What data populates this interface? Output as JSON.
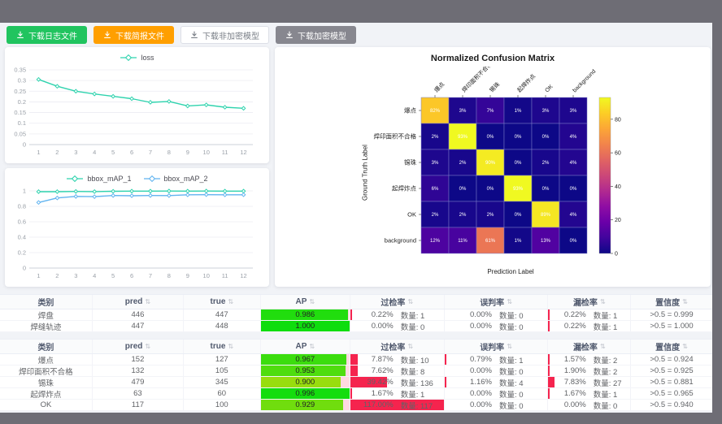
{
  "icons": {
    "download": "arrow-down-to-tray",
    "sort": "⇅"
  },
  "colors": {
    "frame_gray": "#6e6d75",
    "page_bg": "#f1f3f7",
    "green_button": "#21c45f",
    "orange_button": "#ff9f00",
    "gray_button": "#87878f",
    "teal_series": "#2fd3ae",
    "blue_series": "#62b4f0",
    "rate_bar_red": "#f5244e",
    "ap_track_pink": "#ffd9e0"
  },
  "toolbar": {
    "buttons": [
      {
        "label": "下载日志文件",
        "variant": "green"
      },
      {
        "label": "下载简报文件",
        "variant": "orange"
      },
      {
        "label": "下载非加密模型",
        "variant": "white"
      },
      {
        "label": "下载加密模型",
        "variant": "gray"
      }
    ]
  },
  "chart_data": [
    {
      "id": "loss",
      "type": "line",
      "x": [
        1,
        2,
        3,
        4,
        5,
        6,
        7,
        8,
        9,
        10,
        11,
        12
      ],
      "series": [
        {
          "name": "loss",
          "color": "#2fd3ae",
          "values": [
            0.305,
            0.273,
            0.25,
            0.237,
            0.226,
            0.215,
            0.198,
            0.202,
            0.181,
            0.186,
            0.175,
            0.17
          ]
        }
      ],
      "ylim": [
        0,
        0.35
      ],
      "yticks": [
        0,
        0.05,
        0.1,
        0.15,
        0.2,
        0.25,
        0.3,
        0.35
      ],
      "legend_position": "top",
      "grid": true
    },
    {
      "id": "bbox_map",
      "type": "line",
      "x": [
        1,
        2,
        3,
        4,
        5,
        6,
        7,
        8,
        9,
        10,
        11,
        12
      ],
      "series": [
        {
          "name": "bbox_mAP_1",
          "color": "#2fd3ae",
          "values": [
            0.99,
            0.99,
            0.993,
            0.991,
            0.995,
            0.997,
            0.997,
            0.998,
            0.997,
            0.998,
            0.997,
            0.997
          ]
        },
        {
          "name": "bbox_mAP_2",
          "color": "#62b4f0",
          "values": [
            0.85,
            0.908,
            0.928,
            0.925,
            0.94,
            0.937,
            0.94,
            0.939,
            0.949,
            0.951,
            0.949,
            0.95
          ]
        }
      ],
      "ylim": [
        0,
        1
      ],
      "yticks": [
        0,
        0.2,
        0.4,
        0.6,
        0.8,
        1
      ],
      "legend_position": "top",
      "grid": true
    },
    {
      "id": "confusion_matrix",
      "type": "heatmap",
      "title": "Normalized Confusion Matrix",
      "xlabel": "Prediction Label",
      "ylabel": "Ground Truth Label",
      "categories": [
        "爆点",
        "焊印面积不合格",
        "锡珠",
        "起焊炸点",
        "OK",
        "background"
      ],
      "values_pct": [
        [
          82,
          3,
          7,
          1,
          3,
          3
        ],
        [
          2,
          93,
          0,
          0,
          0,
          4
        ],
        [
          3,
          2,
          90,
          0,
          2,
          4
        ],
        [
          6,
          0,
          0,
          93,
          0,
          0
        ],
        [
          2,
          2,
          2,
          0,
          89,
          4
        ],
        [
          12,
          11,
          61,
          1,
          13,
          0
        ]
      ],
      "colormap": "plasma",
      "cmax": 93,
      "colorbar_ticks": [
        0,
        20,
        40,
        60,
        80
      ]
    }
  ],
  "tables": {
    "count_label": "数量:",
    "headers": [
      {
        "label": "类别",
        "sortable": false
      },
      {
        "label": "pred",
        "sortable": true
      },
      {
        "label": "true",
        "sortable": true
      },
      {
        "label": "AP",
        "sortable": true
      },
      {
        "label": "过检率",
        "sortable": true
      },
      {
        "label": "误判率",
        "sortable": true
      },
      {
        "label": "漏检率",
        "sortable": true
      },
      {
        "label": "置信度",
        "sortable": true
      }
    ],
    "groups": [
      {
        "rows": [
          {
            "name": "焊盘",
            "pred": 446,
            "true": 447,
            "ap": 0.986,
            "overkill": {
              "pct": 0.22,
              "count": 1
            },
            "misjudge": {
              "pct": 0.0,
              "count": 0
            },
            "miss": {
              "pct": 0.22,
              "count": 1
            },
            "confidence": ">0.5 = 0.999"
          },
          {
            "name": "焊缝轨迹",
            "pred": 447,
            "true": 448,
            "ap": 1.0,
            "overkill": {
              "pct": 0.0,
              "count": 0
            },
            "misjudge": {
              "pct": 0.0,
              "count": 0
            },
            "miss": {
              "pct": 0.22,
              "count": 1
            },
            "confidence": ">0.5 = 1.000"
          }
        ]
      },
      {
        "rows": [
          {
            "name": "爆点",
            "pred": 152,
            "true": 127,
            "ap": 0.967,
            "overkill": {
              "pct": 7.87,
              "count": 10
            },
            "misjudge": {
              "pct": 0.79,
              "count": 1
            },
            "miss": {
              "pct": 1.57,
              "count": 2
            },
            "confidence": ">0.5 = 0.924"
          },
          {
            "name": "焊印面积不合格",
            "pred": 132,
            "true": 105,
            "ap": 0.953,
            "overkill": {
              "pct": 7.62,
              "count": 8
            },
            "misjudge": {
              "pct": 0.0,
              "count": 0
            },
            "miss": {
              "pct": 1.9,
              "count": 2
            },
            "confidence": ">0.5 = 0.925"
          },
          {
            "name": "锡珠",
            "pred": 479,
            "true": 345,
            "ap": 0.9,
            "overkill": {
              "pct": 39.42,
              "count": 136
            },
            "misjudge": {
              "pct": 1.16,
              "count": 4
            },
            "miss": {
              "pct": 7.83,
              "count": 27
            },
            "confidence": ">0.5 = 0.881"
          },
          {
            "name": "起焊炸点",
            "pred": 63,
            "true": 60,
            "ap": 0.996,
            "overkill": {
              "pct": 1.67,
              "count": 1
            },
            "misjudge": {
              "pct": 0.0,
              "count": 0
            },
            "miss": {
              "pct": 1.67,
              "count": 1
            },
            "confidence": ">0.5 = 0.965"
          },
          {
            "name": "OK",
            "pred": 117,
            "true": 100,
            "ap": 0.929,
            "overkill": {
              "pct": 117.0,
              "count": 117
            },
            "misjudge": {
              "pct": 0.0,
              "count": 0
            },
            "miss": {
              "pct": 0.0,
              "count": 0
            },
            "confidence": ">0.5 = 0.940"
          }
        ]
      }
    ]
  }
}
